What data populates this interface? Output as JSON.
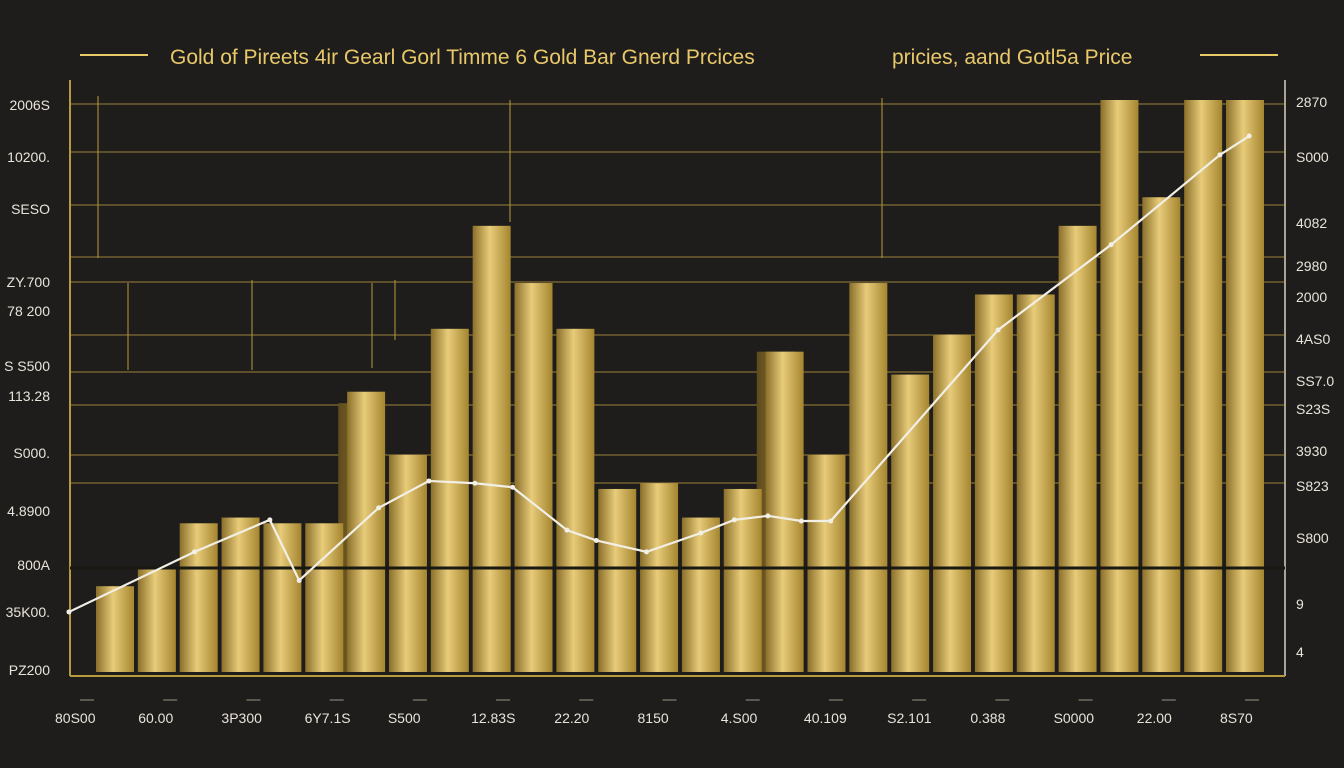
{
  "chart_data": {
    "type": "bar",
    "title": "Gold of Pireets 4ir Gearl Gorl Timme 6 Gold Bar Gnerd Prcices",
    "subtitle": "pricies, aand Gotl5a Price",
    "left_axis_labels": [
      "2006S",
      "10200.",
      "SESO",
      "ZY.700",
      "78 200",
      "S S500",
      "113.28",
      "S000.",
      "4.8900",
      "800A",
      "35K00.",
      "PZ200"
    ],
    "right_axis_labels": [
      "2870",
      "S000",
      "4082",
      "2980",
      "2000",
      "4AS0",
      "SS7.0",
      "S23S",
      "3930",
      "S823",
      "S800",
      "9",
      "4"
    ],
    "x_tick_labels": [
      "80S00",
      "60.00",
      "3P300",
      "6Y7.1S",
      "S500",
      "12.83S",
      "22.20",
      "8150",
      "4.S00",
      "40.109",
      "S2.101",
      "0.388",
      "S0000",
      "22.00",
      "8S70"
    ],
    "ylim": [
      0,
      100
    ],
    "bar_values": [
      15,
      18,
      26,
      27,
      26,
      26,
      49,
      38,
      60,
      78,
      68,
      60,
      32,
      33,
      27,
      32,
      56,
      38,
      68,
      52,
      59,
      66,
      66,
      78,
      100,
      83,
      100,
      100
    ],
    "back_bar_values": [
      null,
      null,
      null,
      null,
      null,
      47,
      null,
      null,
      null,
      null,
      null,
      null,
      null,
      null,
      null,
      56,
      null,
      null,
      null,
      null,
      null,
      null,
      null,
      null,
      null,
      null,
      null,
      null
    ],
    "line": {
      "x": [
        -1.1,
        1.9,
        3.7,
        4.4,
        6.3,
        7.5,
        8.6,
        9.5,
        10.8,
        11.5,
        12.7,
        14.0,
        14.8,
        15.6,
        16.4,
        17.1,
        21.1,
        23.8,
        26.4,
        27.1
      ],
      "y": [
        10.5,
        21,
        26.6,
        16,
        28.7,
        33.4,
        33,
        32.3,
        24.8,
        23,
        21,
        24.3,
        26.6,
        27.3,
        26.4,
        26.4,
        59.8,
        74.7,
        90.4,
        93.7
      ]
    },
    "grid": true,
    "colors": {
      "background": "#1e1d1b",
      "bar": "#c9a84a",
      "bar_highlight": "#e8cc7a",
      "grid": "#b89a3e",
      "line": "#f2efe6",
      "title": "#e9c86a"
    }
  }
}
